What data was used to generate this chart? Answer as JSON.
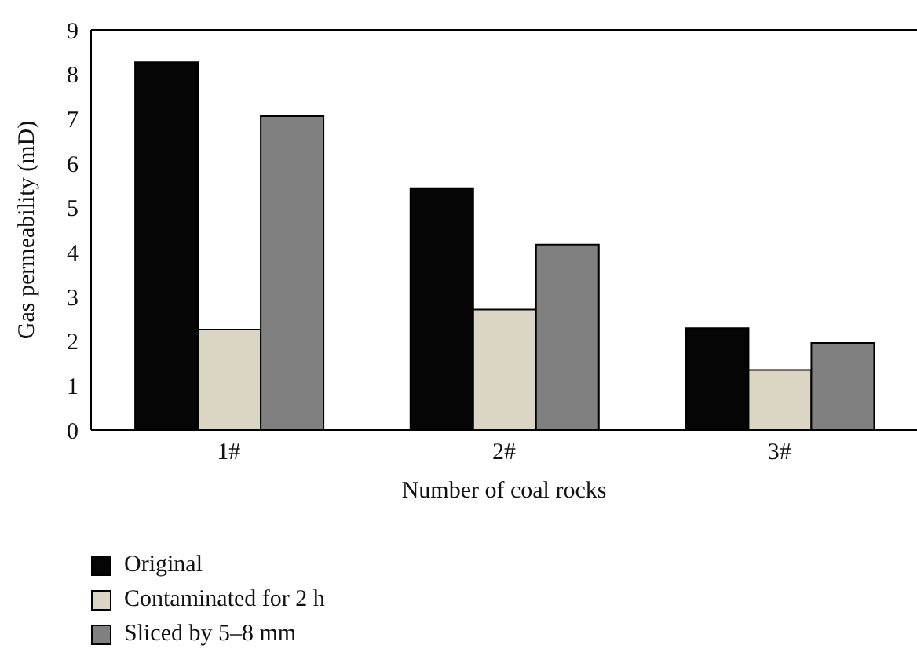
{
  "chart_data": {
    "type": "bar",
    "xlabel": "Number of coal rocks",
    "ylabel": "Gas permeability (mD)",
    "categories": [
      "1#",
      "2#",
      "3#"
    ],
    "series": [
      {
        "name": "Original",
        "color": "#050505",
        "values": [
          8.27,
          5.44,
          2.29
        ]
      },
      {
        "name": "Contaminated for 2 h",
        "color": "#dbd6c3",
        "values": [
          2.26,
          2.71,
          1.35
        ]
      },
      {
        "name": "Sliced by 5–8 mm",
        "color": "#808080",
        "values": [
          7.06,
          4.17,
          1.96
        ]
      }
    ],
    "ylim": [
      0,
      9
    ],
    "yticks": [
      0,
      1,
      2,
      3,
      4,
      5,
      6,
      7,
      8,
      9
    ],
    "grid": false,
    "legend": "bottom left"
  }
}
